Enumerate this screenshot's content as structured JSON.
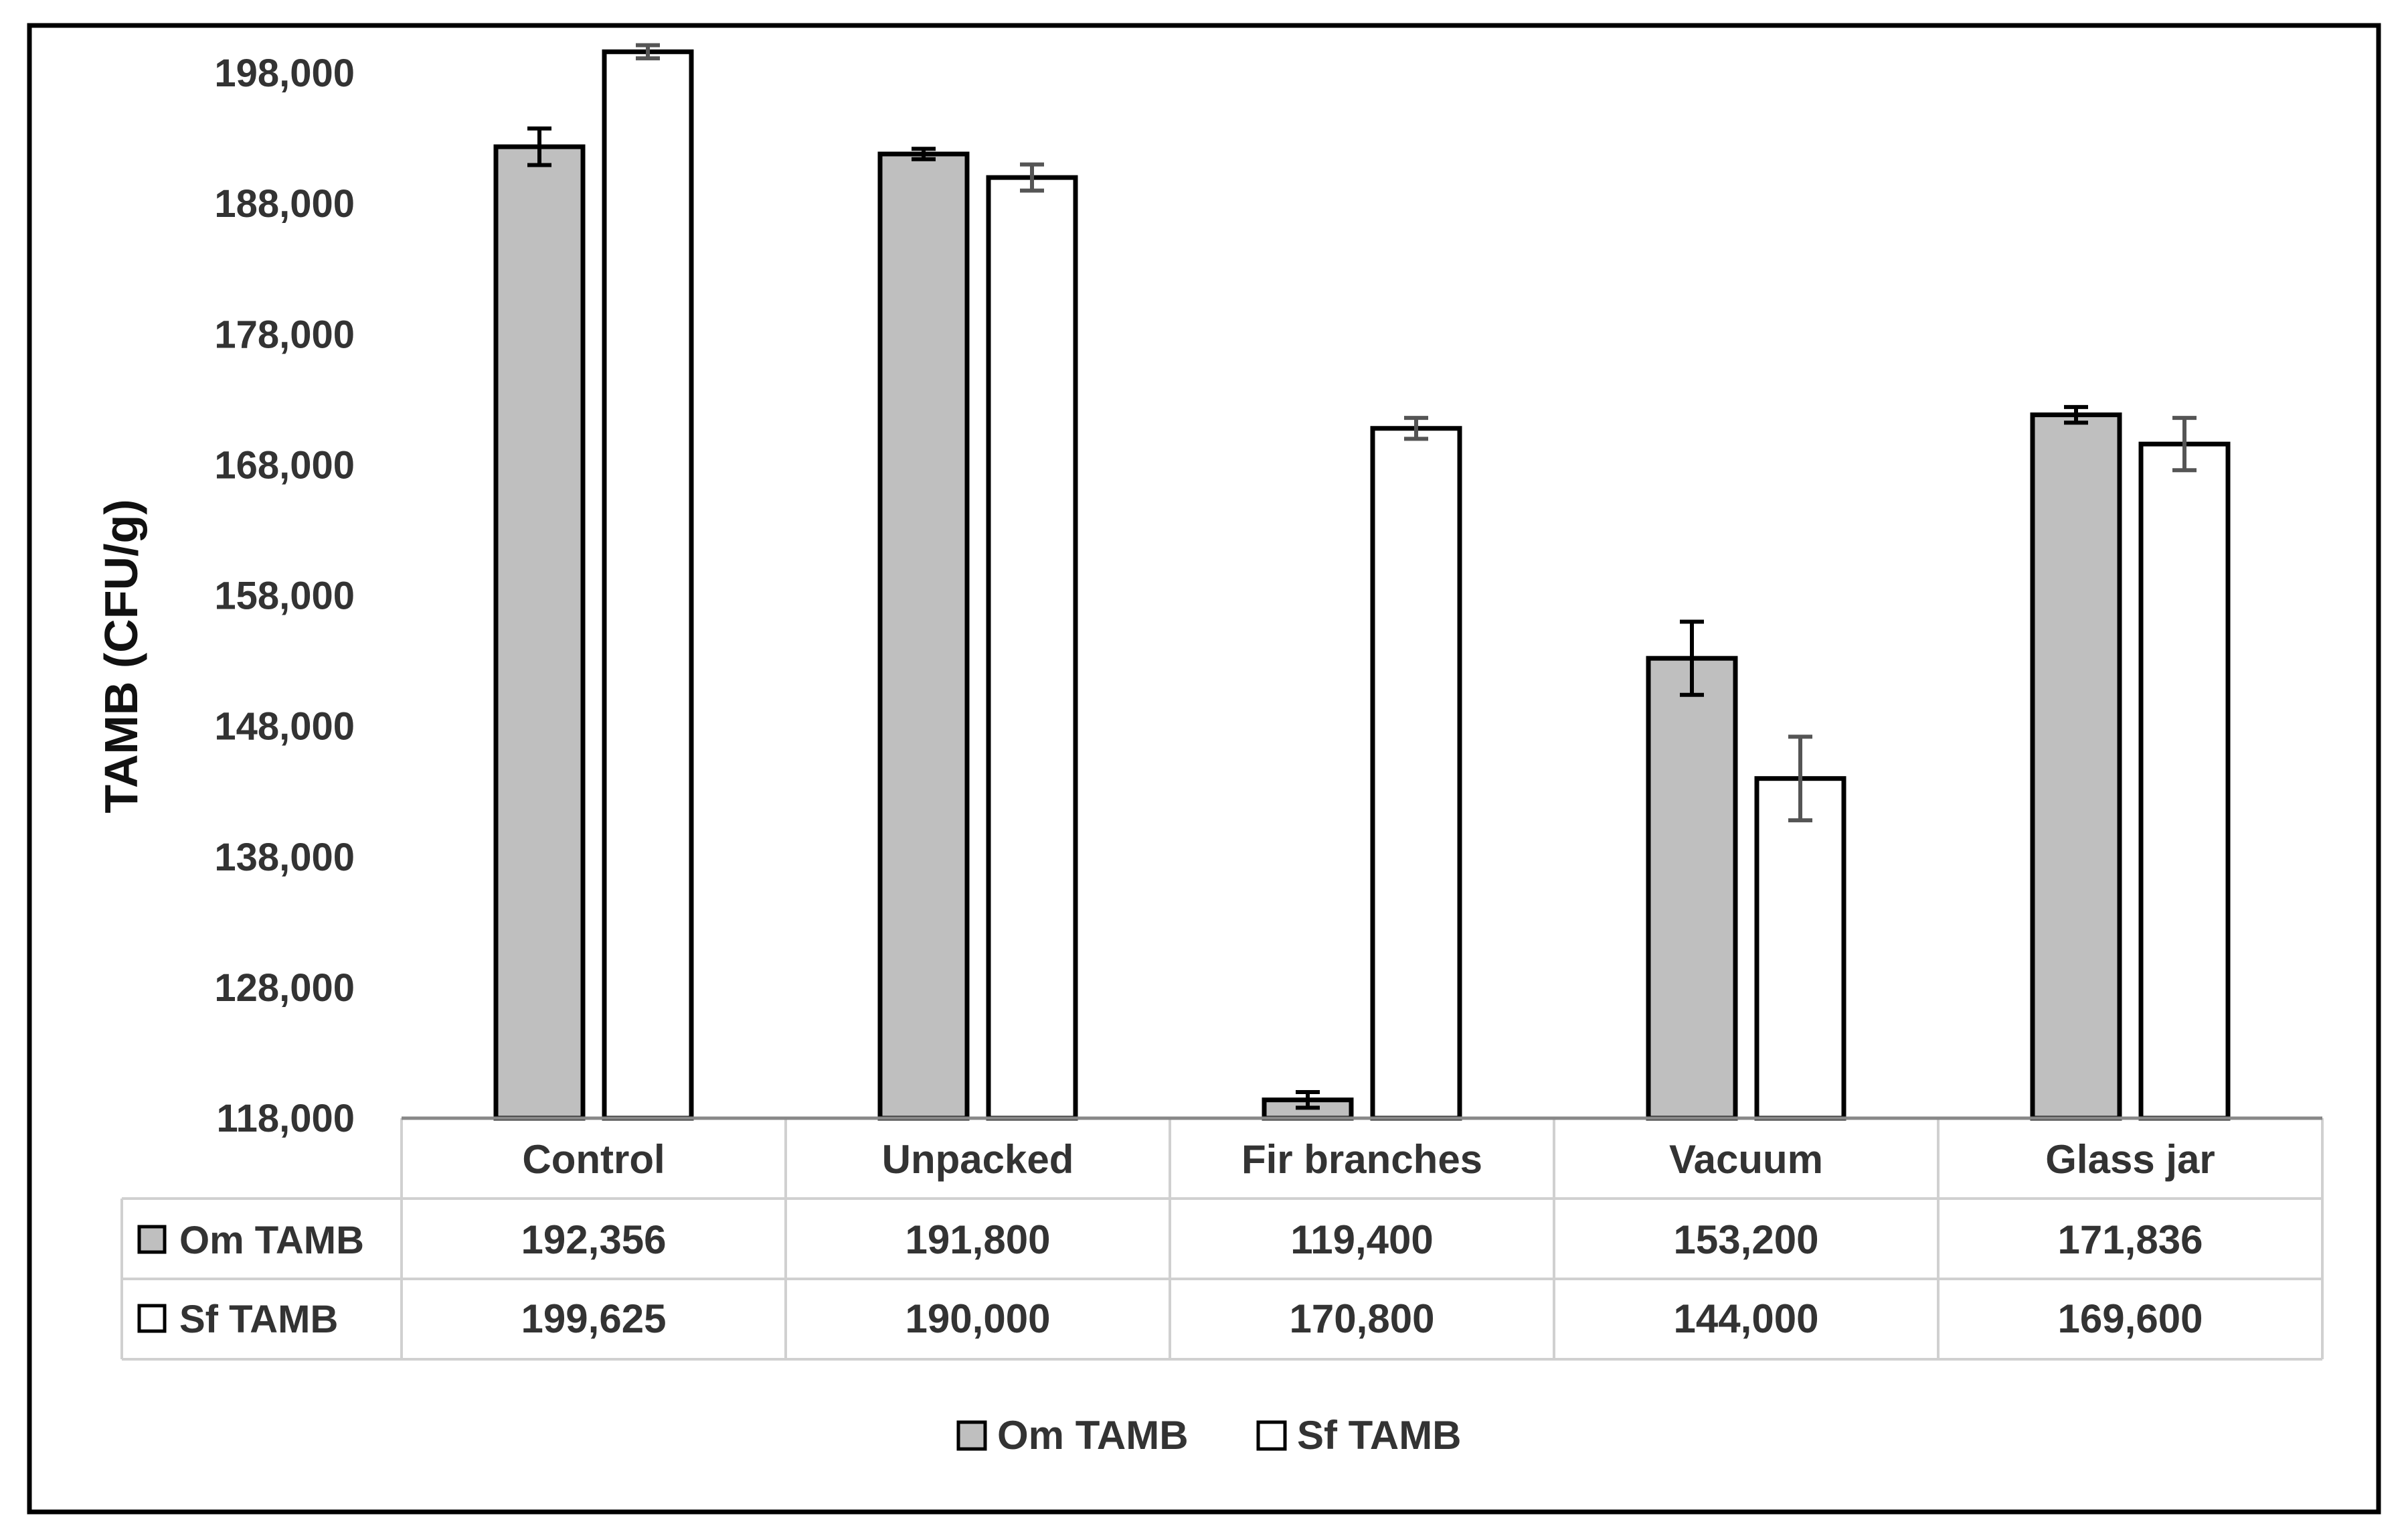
{
  "chart_data": {
    "type": "bar",
    "title": "",
    "xlabel": "",
    "ylabel": "TAMB (CFU/g)",
    "ylim": [
      118000,
      200000
    ],
    "yticks": [
      118000,
      128000,
      138000,
      148000,
      158000,
      168000,
      178000,
      188000,
      198000
    ],
    "ytick_labels": [
      "118,000",
      "128,000",
      "138,000",
      "148,000",
      "158,000",
      "168,000",
      "178,000",
      "188,000",
      "198,000"
    ],
    "categories": [
      "Control",
      "Unpacked",
      "Fir branches",
      "Vacuum",
      "Glass jar"
    ],
    "series": [
      {
        "name": "Om TAMB",
        "color": "#bfbfbf",
        "values": [
          192356,
          191800,
          119400,
          153200,
          171836
        ],
        "value_labels": [
          "192,356",
          "191,800",
          "119,400",
          "153,200",
          "171,836"
        ],
        "errors": [
          1400,
          400,
          600,
          2800,
          600
        ]
      },
      {
        "name": "Sf TAMB",
        "color": "#ffffff",
        "values": [
          199625,
          190000,
          170800,
          144000,
          169600
        ],
        "value_labels": [
          "199,625",
          "190,000",
          "170,800",
          "144,000",
          "169,600"
        ],
        "errors": [
          500,
          1000,
          800,
          3200,
          2000
        ]
      }
    ],
    "data_table": true,
    "legend": "bottom",
    "grid": false
  }
}
